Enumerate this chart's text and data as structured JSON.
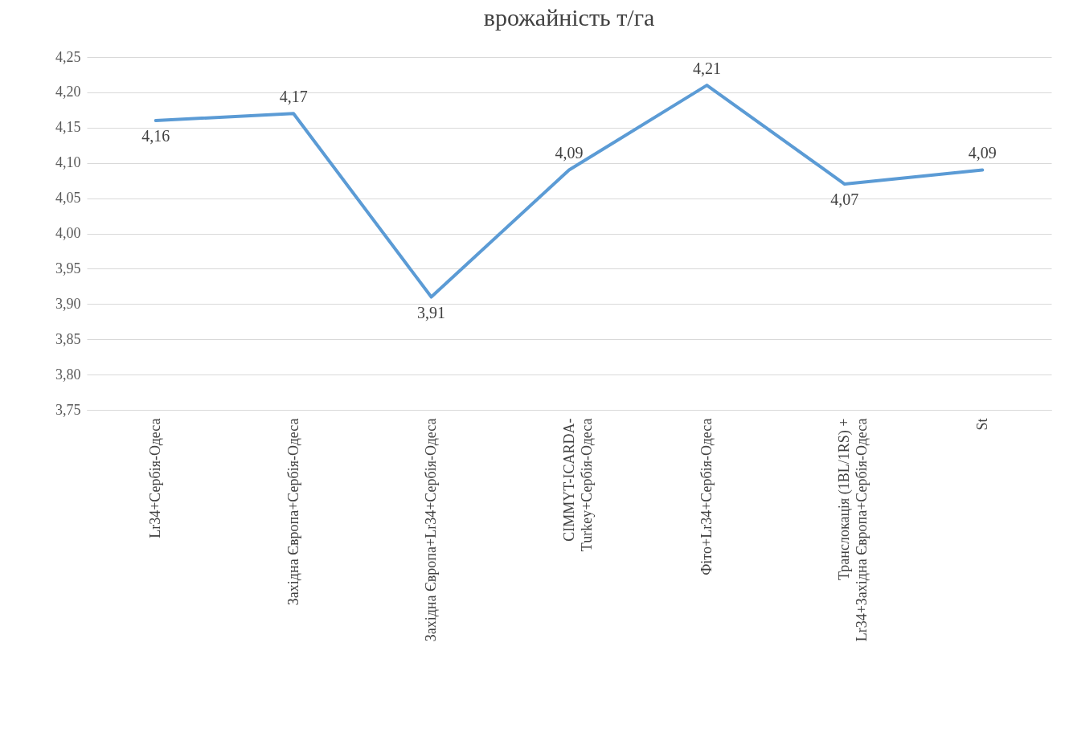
{
  "chart_data": {
    "type": "line",
    "title": "врожайність т/га",
    "categories": [
      "Lr34+Сербія-Одеса",
      "Західна Європа+Сербія-Одеса",
      "Західна Європа+Lr34+Сербія-Одеса",
      "CIMMYT-ICARDA- Turkey+Сербія-Одеса",
      "Фіто+Lr34+Сербія-Одеса",
      "Транслокація (1BL/1RS) + Lr34+Західна Європа+Сербія-Одеса",
      "St"
    ],
    "series": [
      {
        "color": "#5b9bd5",
        "values": [
          4.16,
          4.17,
          3.91,
          4.09,
          4.21,
          4.07,
          4.09
        ],
        "value_labels": [
          "4,16",
          "4,17",
          "3,91",
          "4,09",
          "4,21",
          "4,07",
          "4,09"
        ]
      }
    ],
    "ylim": [
      3.75,
      4.25
    ],
    "yticks": [
      {
        "value": 3.75,
        "label": "3,75"
      },
      {
        "value": 3.8,
        "label": "3,80"
      },
      {
        "value": 3.85,
        "label": "3,85"
      },
      {
        "value": 3.9,
        "label": "3,90"
      },
      {
        "value": 3.95,
        "label": "3,95"
      },
      {
        "value": 4.0,
        "label": "4,00"
      },
      {
        "value": 4.05,
        "label": "4,05"
      },
      {
        "value": 4.1,
        "label": "4,10"
      },
      {
        "value": 4.15,
        "label": "4,15"
      },
      {
        "value": 4.2,
        "label": "4,20"
      },
      {
        "value": 4.25,
        "label": "4,25"
      }
    ],
    "grid": "y",
    "legend": false,
    "marker": "none",
    "line_style": "solid"
  }
}
